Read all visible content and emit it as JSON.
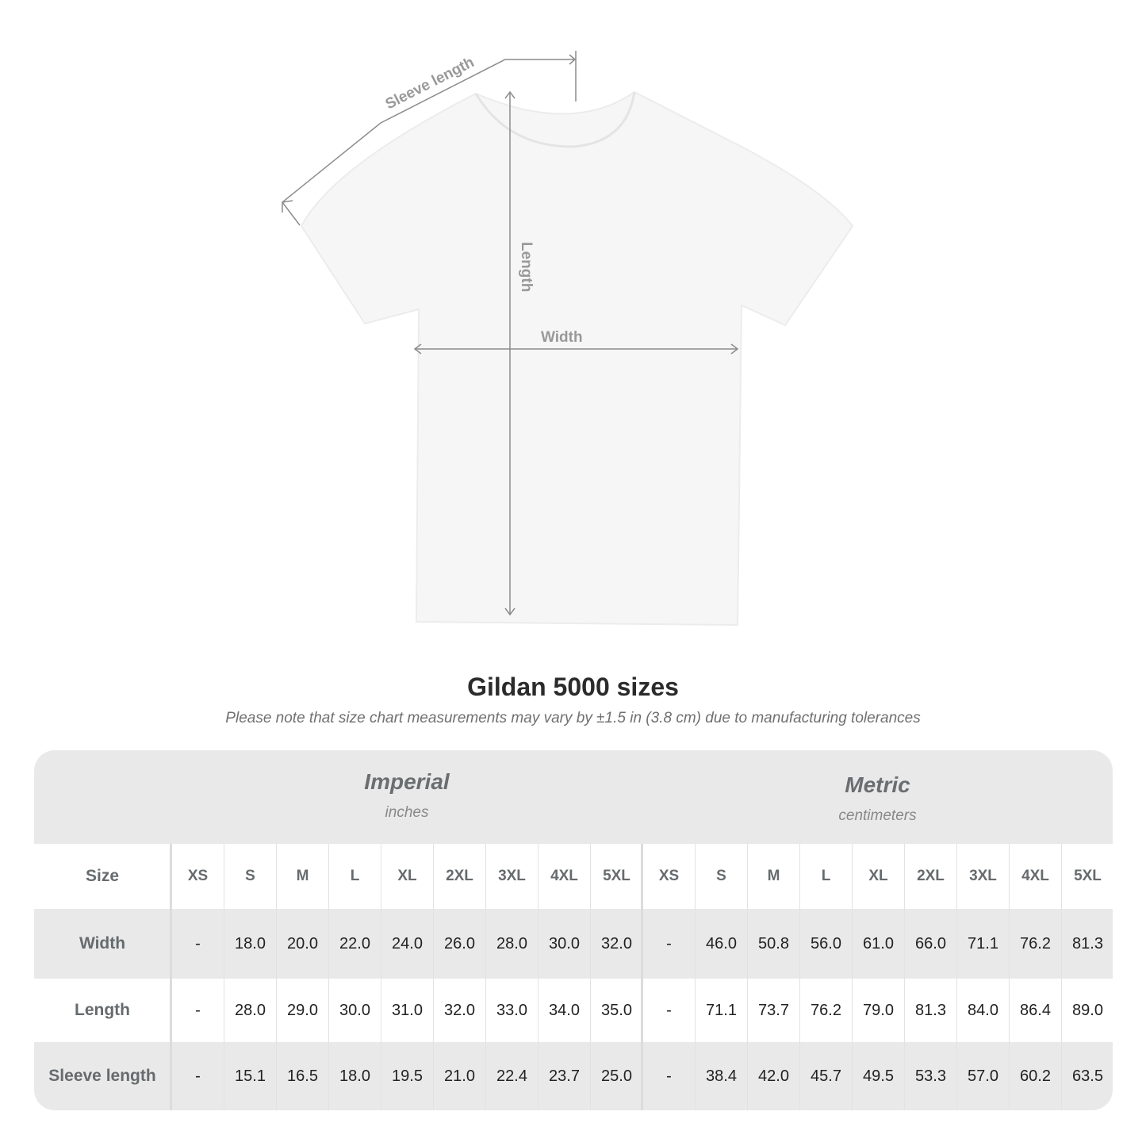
{
  "diagram": {
    "labels": {
      "sleeve": "Sleeve length",
      "length": "Length",
      "width": "Width"
    },
    "line_color": "#8c8c8c"
  },
  "title": "Gildan 5000 sizes",
  "note": "Please note that size chart measurements may vary by ±1.5 in (3.8 cm) due to manufacturing tolerances",
  "table": {
    "imperial": {
      "name": "Imperial",
      "unit": "inches"
    },
    "metric": {
      "name": "Metric",
      "unit": "centimeters"
    },
    "size_label": "Size",
    "sizes": [
      "XS",
      "S",
      "M",
      "L",
      "XL",
      "2XL",
      "3XL",
      "4XL",
      "5XL"
    ],
    "rows": [
      {
        "label": "Width",
        "imperial": [
          "-",
          "18.0",
          "20.0",
          "22.0",
          "24.0",
          "26.0",
          "28.0",
          "30.0",
          "32.0"
        ],
        "metric": [
          "-",
          "46.0",
          "50.8",
          "56.0",
          "61.0",
          "66.0",
          "71.1",
          "76.2",
          "81.3"
        ]
      },
      {
        "label": "Length",
        "imperial": [
          "-",
          "28.0",
          "29.0",
          "30.0",
          "31.0",
          "32.0",
          "33.0",
          "34.0",
          "35.0"
        ],
        "metric": [
          "-",
          "71.1",
          "73.7",
          "76.2",
          "79.0",
          "81.3",
          "84.0",
          "86.4",
          "89.0"
        ]
      },
      {
        "label": "Sleeve length",
        "imperial": [
          "-",
          "15.1",
          "16.5",
          "18.0",
          "19.5",
          "21.0",
          "22.4",
          "23.7",
          "25.0"
        ],
        "metric": [
          "-",
          "38.4",
          "42.0",
          "45.7",
          "49.5",
          "53.3",
          "57.0",
          "60.2",
          "63.5"
        ]
      }
    ]
  },
  "colors": {
    "band": "#e9e9e9",
    "header_text": "#666b6d"
  }
}
